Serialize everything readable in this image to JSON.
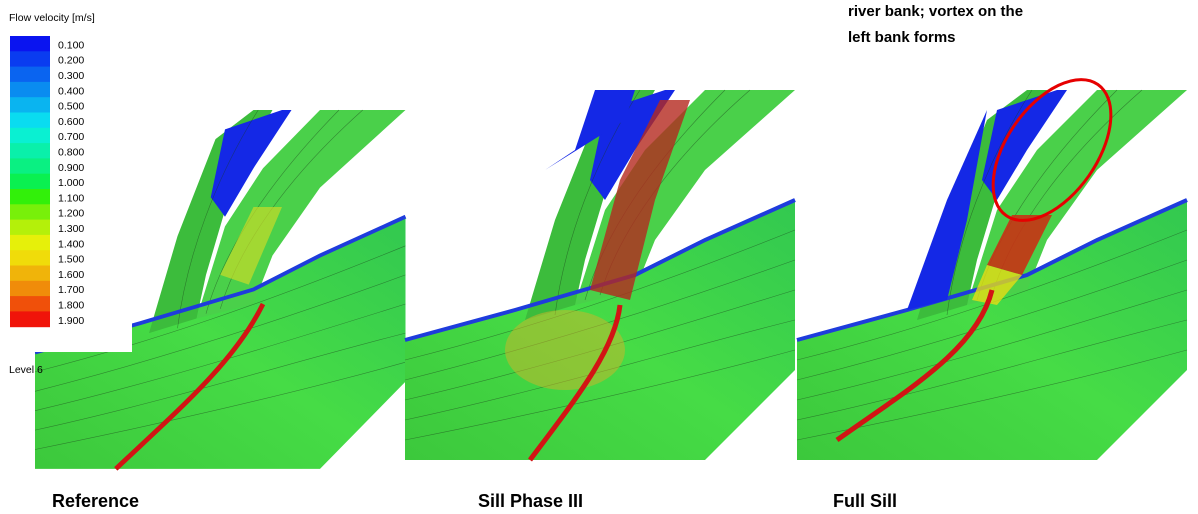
{
  "legend": {
    "title": "Flow velocity [m/s]",
    "entries": [
      "0.100",
      "0.200",
      "0.300",
      "0.400",
      "0.500",
      "0.600",
      "0.700",
      "0.800",
      "0.900",
      "1.000",
      "1.100",
      "1.200",
      "1.300",
      "1.400",
      "1.500",
      "1.600",
      "1.700",
      "1.800",
      "1.900"
    ],
    "colors": [
      "#0a14f0",
      "#0a3cf0",
      "#0a64f0",
      "#0a8cf0",
      "#0ab4f0",
      "#0adcf0",
      "#0af0d2",
      "#0af0aa",
      "#0af082",
      "#0af050",
      "#32f00a",
      "#78f00a",
      "#b4f00a",
      "#e6f00a",
      "#f0dc0a",
      "#f0b40a",
      "#f08c0a",
      "#f0500a",
      "#f0140a"
    ],
    "footer": "Level 6"
  },
  "annotation": {
    "lines": [
      "river bank; vortex on the",
      "left bank forms"
    ]
  },
  "panels": [
    {
      "caption": "Reference"
    },
    {
      "caption": "Sill Phase III"
    },
    {
      "caption": "Full Sill"
    }
  ]
}
